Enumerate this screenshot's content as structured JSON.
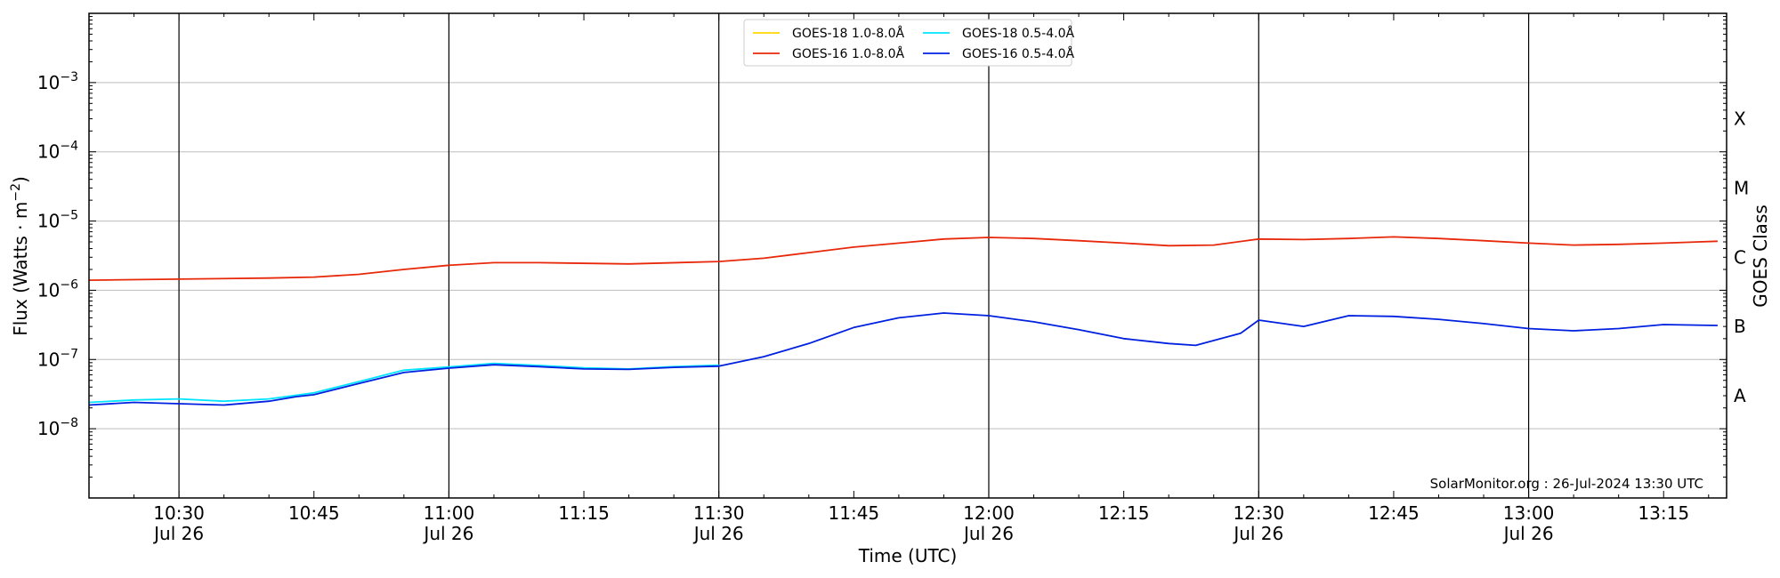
{
  "chart_data": {
    "type": "line",
    "xlabel": "Time (UTC)",
    "ylabel_main": "Flux (Watts · m",
    "ylabel_sup": "−2",
    "ylabel_close": ")",
    "y2label": "GOES Class",
    "yscale": "log",
    "xlim": [
      "10:20",
      "13:22"
    ],
    "ylim": [
      1e-09,
      0.01
    ],
    "grid": "horizontal at decades; vertical lines at half hours",
    "legend_placement": "top-center",
    "credit": "SolarMonitor.org : 26-Jul-2024 13:30 UTC",
    "y_ticks": [
      {
        "value": 1e-08,
        "base": "10",
        "exp": "−8"
      },
      {
        "value": 1e-07,
        "base": "10",
        "exp": "−7"
      },
      {
        "value": 1e-06,
        "base": "10",
        "exp": "−6"
      },
      {
        "value": 1e-05,
        "base": "10",
        "exp": "−5"
      },
      {
        "value": 0.0001,
        "base": "10",
        "exp": "−4"
      },
      {
        "value": 0.001,
        "base": "10",
        "exp": "−3"
      }
    ],
    "class_labels": [
      {
        "value": 3e-08,
        "label": "A"
      },
      {
        "value": 3e-07,
        "label": "B"
      },
      {
        "value": 3e-06,
        "label": "C"
      },
      {
        "value": 3e-05,
        "label": "M"
      },
      {
        "value": 0.0003,
        "label": "X"
      }
    ],
    "x_ticks": [
      {
        "time": "10:30",
        "date": "Jul 26"
      },
      {
        "time": "10:45",
        "date": ""
      },
      {
        "time": "11:00",
        "date": "Jul 26"
      },
      {
        "time": "11:15",
        "date": ""
      },
      {
        "time": "11:30",
        "date": "Jul 26"
      },
      {
        "time": "11:45",
        "date": ""
      },
      {
        "time": "12:00",
        "date": "Jul 26"
      },
      {
        "time": "12:15",
        "date": ""
      },
      {
        "time": "12:30",
        "date": "Jul 26"
      },
      {
        "time": "12:45",
        "date": ""
      },
      {
        "time": "13:00",
        "date": "Jul 26"
      },
      {
        "time": "13:15",
        "date": ""
      }
    ],
    "vlines": [
      "10:30",
      "11:00",
      "11:30",
      "12:00",
      "12:30",
      "13:00"
    ],
    "series": [
      {
        "name": "GOES-18 1.0-8.0Å",
        "color": "#FFD700",
        "x": [],
        "values": []
      },
      {
        "name": "GOES-16 1.0-8.0Å",
        "color": "#E8280A",
        "x": [
          "10:20",
          "10:30",
          "10:40",
          "10:45",
          "10:50",
          "10:55",
          "11:00",
          "11:05",
          "11:10",
          "11:20",
          "11:30",
          "11:35",
          "11:40",
          "11:45",
          "11:50",
          "11:55",
          "12:00",
          "12:05",
          "12:10",
          "12:15",
          "12:20",
          "12:25",
          "12:30",
          "12:35",
          "12:40",
          "12:45",
          "12:50",
          "12:55",
          "13:00",
          "13:05",
          "13:10",
          "13:15",
          "13:21"
        ],
        "values": [
          1.4e-06,
          1.45e-06,
          1.5e-06,
          1.55e-06,
          1.7e-06,
          2e-06,
          2.3e-06,
          2.5e-06,
          2.5e-06,
          2.4e-06,
          2.6e-06,
          2.9e-06,
          3.5e-06,
          4.2e-06,
          4.8e-06,
          5.5e-06,
          5.8e-06,
          5.6e-06,
          5.2e-06,
          4.8e-06,
          4.4e-06,
          4.5e-06,
          5.5e-06,
          5.4e-06,
          5.6e-06,
          5.9e-06,
          5.6e-06,
          5.2e-06,
          4.8e-06,
          4.5e-06,
          4.6e-06,
          4.8e-06,
          5.1e-06
        ]
      },
      {
        "name": "GOES-18 0.5-4.0Å",
        "color": "#00E5FF",
        "x": [
          "10:20",
          "10:25",
          "10:30",
          "10:35",
          "10:40",
          "10:45",
          "10:50",
          "10:55",
          "11:00",
          "11:05",
          "11:10",
          "11:15",
          "11:20",
          "11:25",
          "11:30"
        ],
        "values": [
          2.4e-08,
          2.6e-08,
          2.7e-08,
          2.5e-08,
          2.7e-08,
          3.3e-08,
          4.8e-08,
          7e-08,
          7.8e-08,
          8.8e-08,
          8.2e-08,
          7.6e-08,
          7.3e-08,
          7.9e-08,
          8.3e-08
        ]
      },
      {
        "name": "GOES-16 0.5-4.0Å",
        "color": "#0020E0",
        "x": [
          "10:20",
          "10:25",
          "10:30",
          "10:35",
          "10:40",
          "10:43",
          "10:45",
          "10:50",
          "10:55",
          "11:00",
          "11:05",
          "11:10",
          "11:15",
          "11:20",
          "11:25",
          "11:30",
          "11:35",
          "11:40",
          "11:45",
          "11:50",
          "11:55",
          "12:00",
          "12:05",
          "12:10",
          "12:15",
          "12:20",
          "12:23",
          "12:28",
          "12:30",
          "12:35",
          "12:40",
          "12:45",
          "12:50",
          "12:55",
          "13:00",
          "13:05",
          "13:10",
          "13:15",
          "13:21"
        ],
        "values": [
          2.2e-08,
          2.4e-08,
          2.3e-08,
          2.2e-08,
          2.5e-08,
          2.9e-08,
          3.1e-08,
          4.5e-08,
          6.5e-08,
          7.5e-08,
          8.4e-08,
          7.9e-08,
          7.3e-08,
          7.2e-08,
          7.7e-08,
          8e-08,
          1.1e-07,
          1.7e-07,
          2.9e-07,
          4e-07,
          4.7e-07,
          4.3e-07,
          3.5e-07,
          2.7e-07,
          2e-07,
          1.7e-07,
          1.6e-07,
          2.4e-07,
          3.7e-07,
          3e-07,
          4.3e-07,
          4.2e-07,
          3.8e-07,
          3.3e-07,
          2.8e-07,
          2.6e-07,
          2.8e-07,
          3.2e-07,
          3.1e-07
        ]
      }
    ]
  }
}
